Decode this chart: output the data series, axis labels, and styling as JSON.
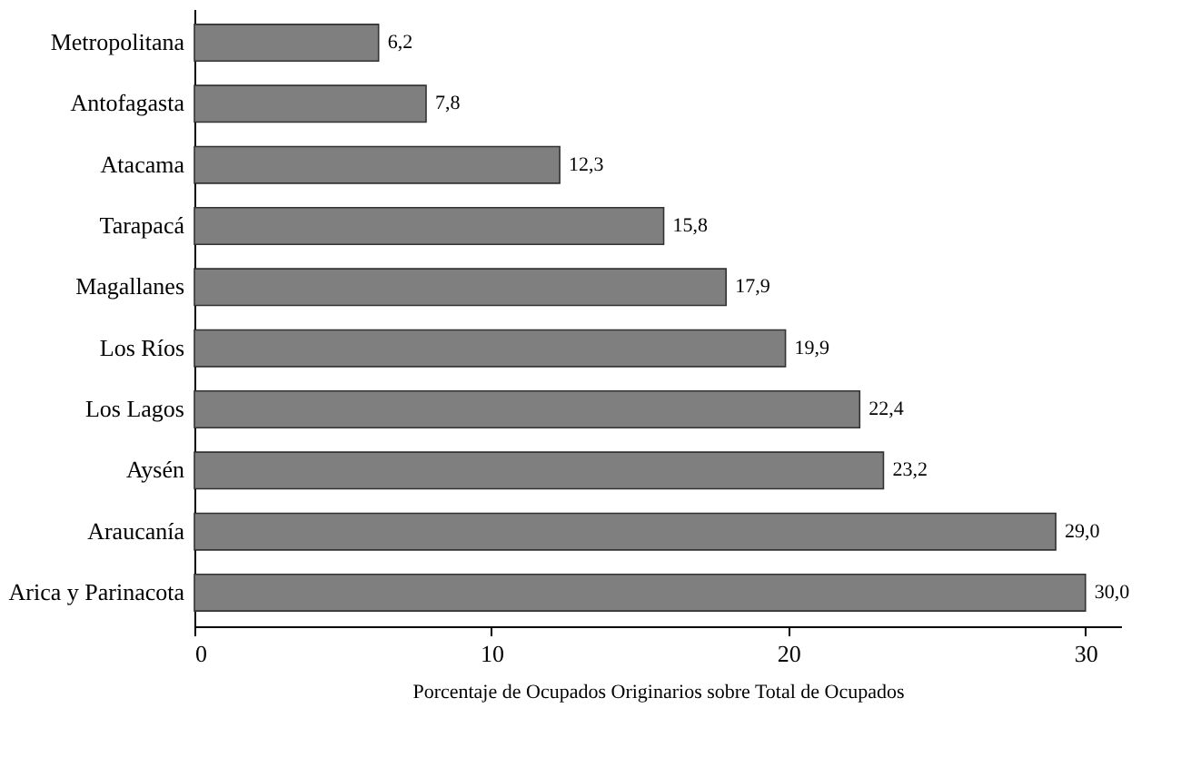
{
  "chart_data": {
    "type": "bar",
    "orientation": "horizontal",
    "xlabel": "Porcentaje de Ocupados Originarios sobre Total de Ocupados",
    "categories": [
      "Metropolitana",
      "Antofagasta",
      "Atacama",
      "Tarapacá",
      "Magallanes",
      "Los Ríos",
      "Los Lagos",
      "Aysén",
      "Araucanía",
      "Arica y Parinacota"
    ],
    "values": [
      6.2,
      7.8,
      12.3,
      15.8,
      17.9,
      19.9,
      22.4,
      23.2,
      29.0,
      30.0
    ],
    "value_labels": [
      "6,2",
      "7,8",
      "12,3",
      "15,8",
      "17,9",
      "19,9",
      "22,4",
      "23,2",
      "29,0",
      "30,0"
    ],
    "color": "#7f7f7f",
    "xlim": [
      0,
      31.2
    ],
    "xticks": [
      0,
      10,
      20,
      30
    ],
    "grid": false
  }
}
